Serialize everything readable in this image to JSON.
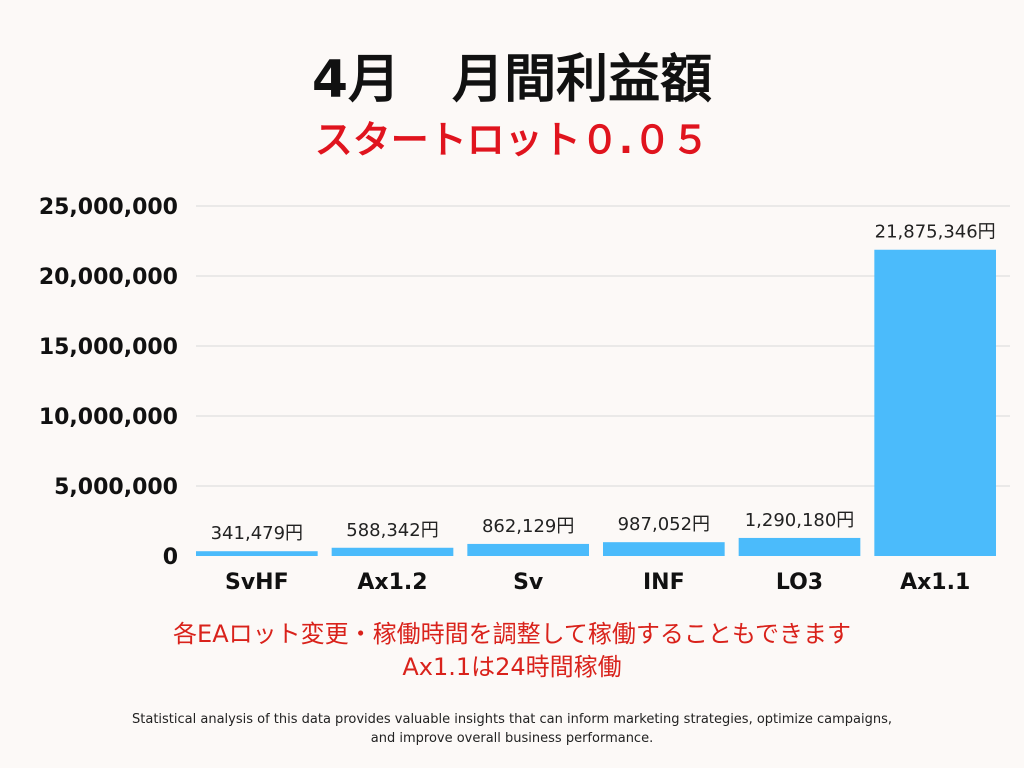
{
  "title": "4月　月間利益額",
  "subtitle": "スタートロット０.０５",
  "colors": {
    "bar": "#4bbbfb",
    "subtitle": "#e0141e",
    "note": "#d9221b",
    "grid": "#d9d9d9",
    "text": "#111111"
  },
  "chart_data": {
    "type": "bar",
    "title": "4月　月間利益額",
    "subtitle": "スタートロット０.０５",
    "categories": [
      "SvHF",
      "Ax1.2",
      "Sv",
      "INF",
      "LO3",
      "Ax1.1"
    ],
    "values": [
      341479,
      588342,
      862129,
      987052,
      1290180,
      21875346
    ],
    "data_labels": [
      "341,479円",
      "588,342円",
      "862,129円",
      "987,052円",
      "1,290,180円",
      "21,875,346円"
    ],
    "y_ticks": [
      0,
      5000000,
      10000000,
      15000000,
      20000000,
      25000000
    ],
    "y_tick_labels": [
      "0",
      "5,000,000",
      "10,000,000",
      "15,000,000",
      "20,000,000",
      "25,000,000"
    ],
    "ylim": [
      0,
      25000000
    ],
    "grid": true,
    "legend": "none",
    "xlabel": "",
    "ylabel": ""
  },
  "notes": {
    "line1": "各EAロット変更・稼働時間を調整して稼働することもできます",
    "line2": "Ax1.1は24時間稼働"
  },
  "footer": {
    "line1": "Statistical analysis of this data provides valuable insights that can inform marketing strategies, optimize campaigns,",
    "line2": "and improve overall business performance."
  }
}
